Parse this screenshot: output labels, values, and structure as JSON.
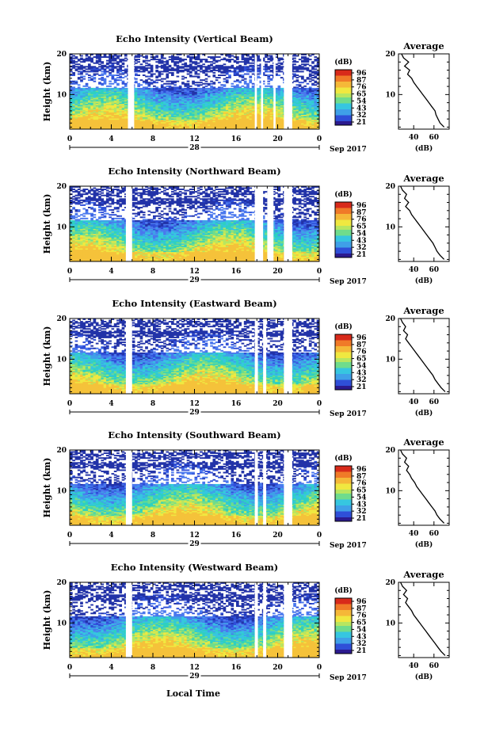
{
  "page": {
    "date_label": "Sep 2017",
    "x_axis_title": "Local Time"
  },
  "colorbar": {
    "unit": "(dB)",
    "tick_labels": [
      "96",
      "87",
      "76",
      "65",
      "54",
      "43",
      "32",
      "21"
    ],
    "colors": [
      "#2b1a8f",
      "#2f4fd8",
      "#3fa0e8",
      "#2fd0d0",
      "#7fe07a",
      "#f0e840",
      "#f59a2a",
      "#d82a1a"
    ]
  },
  "chart_data": [
    {
      "type": "heatmap",
      "title": "Echo Intensity (Vertical Beam)",
      "ylabel": "Height (km)",
      "x_ticks": [
        "0",
        "4",
        "8",
        "12",
        "16",
        "20",
        "0"
      ],
      "xlim": [
        0,
        24
      ],
      "y_ticks": [
        "10",
        "20"
      ],
      "ylim": [
        1.5,
        20
      ],
      "day_label": "28",
      "data_gaps_hours": [
        [
          5.6,
          6.2
        ],
        [
          17.8,
          18.0
        ],
        [
          18.4,
          18.6
        ],
        [
          19.6,
          19.8
        ],
        [
          20.6,
          21.4
        ]
      ],
      "average_profile": {
        "title": "Average",
        "xlabel": "(dB)",
        "x_ticks": [
          "40",
          "60"
        ],
        "xlim": [
          25,
          75
        ],
        "y_ticks": [
          "10",
          "20"
        ],
        "ylim": [
          1.5,
          20
        ],
        "height_km": [
          2,
          3,
          4,
          5,
          6,
          7,
          8,
          9,
          10,
          11,
          12,
          13,
          14,
          15,
          16,
          17,
          18,
          19,
          20
        ],
        "db": [
          70,
          66,
          64,
          62,
          61,
          58,
          55,
          52,
          49,
          46,
          43,
          40,
          38,
          34,
          36,
          31,
          35,
          30,
          28
        ]
      }
    },
    {
      "type": "heatmap",
      "title": "Echo Intensity (Northward Beam)",
      "ylabel": "Height (km)",
      "x_ticks": [
        "0",
        "4",
        "8",
        "12",
        "16",
        "20",
        "0"
      ],
      "xlim": [
        0,
        24
      ],
      "y_ticks": [
        "10",
        "20"
      ],
      "ylim": [
        1.5,
        20
      ],
      "day_label": "29",
      "data_gaps_hours": [
        [
          5.4,
          6.0
        ],
        [
          17.8,
          18.6
        ],
        [
          19.0,
          19.6
        ],
        [
          20.6,
          21.4
        ]
      ],
      "average_profile": {
        "title": "Average",
        "xlabel": "(dB)",
        "x_ticks": [
          "40",
          "60"
        ],
        "xlim": [
          25,
          75
        ],
        "y_ticks": [
          "10",
          "20"
        ],
        "ylim": [
          1.5,
          20
        ],
        "height_km": [
          2,
          3,
          4,
          5,
          6,
          7,
          8,
          9,
          10,
          11,
          12,
          13,
          14,
          15,
          16,
          17,
          18,
          19,
          20
        ],
        "db": [
          70,
          66,
          63,
          61,
          59,
          56,
          53,
          50,
          47,
          44,
          41,
          38,
          36,
          32,
          35,
          31,
          33,
          29,
          27
        ]
      }
    },
    {
      "type": "heatmap",
      "title": "Echo Intensity (Eastward Beam)",
      "ylabel": "Height (km)",
      "x_ticks": [
        "0",
        "4",
        "8",
        "12",
        "16",
        "20",
        "0"
      ],
      "xlim": [
        0,
        24
      ],
      "y_ticks": [
        "10",
        "20"
      ],
      "ylim": [
        1.5,
        20
      ],
      "day_label": "29",
      "data_gaps_hours": [
        [
          5.4,
          6.0
        ],
        [
          17.8,
          18.1
        ],
        [
          18.6,
          18.9
        ],
        [
          20.6,
          21.4
        ]
      ],
      "average_profile": {
        "title": "Average",
        "xlabel": "(dB)",
        "x_ticks": [
          "40",
          "60"
        ],
        "xlim": [
          25,
          75
        ],
        "y_ticks": [
          "10",
          "20"
        ],
        "ylim": [
          1.5,
          20
        ],
        "height_km": [
          2,
          3,
          4,
          5,
          6,
          7,
          8,
          9,
          10,
          11,
          12,
          13,
          14,
          15,
          16,
          17,
          18,
          19,
          20
        ],
        "db": [
          71,
          67,
          64,
          61,
          59,
          56,
          53,
          50,
          47,
          44,
          41,
          38,
          35,
          32,
          34,
          30,
          32,
          29,
          27
        ]
      }
    },
    {
      "type": "heatmap",
      "title": "Echo Intensity (Southward Beam)",
      "ylabel": "Height (km)",
      "x_ticks": [
        "0",
        "4",
        "8",
        "12",
        "16",
        "20",
        "0"
      ],
      "xlim": [
        0,
        24
      ],
      "y_ticks": [
        "10",
        "20"
      ],
      "ylim": [
        1.5,
        20
      ],
      "day_label": "29",
      "data_gaps_hours": [
        [
          5.4,
          6.0
        ],
        [
          17.8,
          18.1
        ],
        [
          18.6,
          18.9
        ],
        [
          20.6,
          21.4
        ]
      ],
      "average_profile": {
        "title": "Average",
        "xlabel": "(dB)",
        "x_ticks": [
          "40",
          "60"
        ],
        "xlim": [
          25,
          75
        ],
        "y_ticks": [
          "10",
          "20"
        ],
        "ylim": [
          1.5,
          20
        ],
        "height_km": [
          2,
          3,
          4,
          5,
          6,
          7,
          8,
          9,
          10,
          11,
          12,
          13,
          14,
          15,
          16,
          17,
          18,
          19,
          20
        ],
        "db": [
          70,
          66,
          63,
          61,
          58,
          55,
          52,
          49,
          46,
          43,
          41,
          38,
          36,
          33,
          35,
          31,
          33,
          29,
          27
        ]
      }
    },
    {
      "type": "heatmap",
      "title": "Echo Intensity (Westward Beam)",
      "ylabel": "Height (km)",
      "x_ticks": [
        "0",
        "4",
        "8",
        "12",
        "16",
        "20",
        "0"
      ],
      "xlim": [
        0,
        24
      ],
      "y_ticks": [
        "10",
        "20"
      ],
      "ylim": [
        1.5,
        20
      ],
      "day_label": "29",
      "data_gaps_hours": [
        [
          5.4,
          6.0
        ],
        [
          17.8,
          18.1
        ],
        [
          18.6,
          18.9
        ],
        [
          20.6,
          21.4
        ]
      ],
      "average_profile": {
        "title": "Average",
        "xlabel": "(dB)",
        "x_ticks": [
          "40",
          "60"
        ],
        "xlim": [
          25,
          75
        ],
        "y_ticks": [
          "10",
          "20"
        ],
        "ylim": [
          1.5,
          20
        ],
        "height_km": [
          2,
          3,
          4,
          5,
          6,
          7,
          8,
          9,
          10,
          11,
          12,
          13,
          14,
          15,
          16,
          17,
          18,
          19,
          20
        ],
        "db": [
          71,
          67,
          64,
          61,
          58,
          55,
          52,
          49,
          46,
          43,
          40,
          38,
          35,
          32,
          34,
          30,
          33,
          29,
          27
        ]
      }
    }
  ]
}
